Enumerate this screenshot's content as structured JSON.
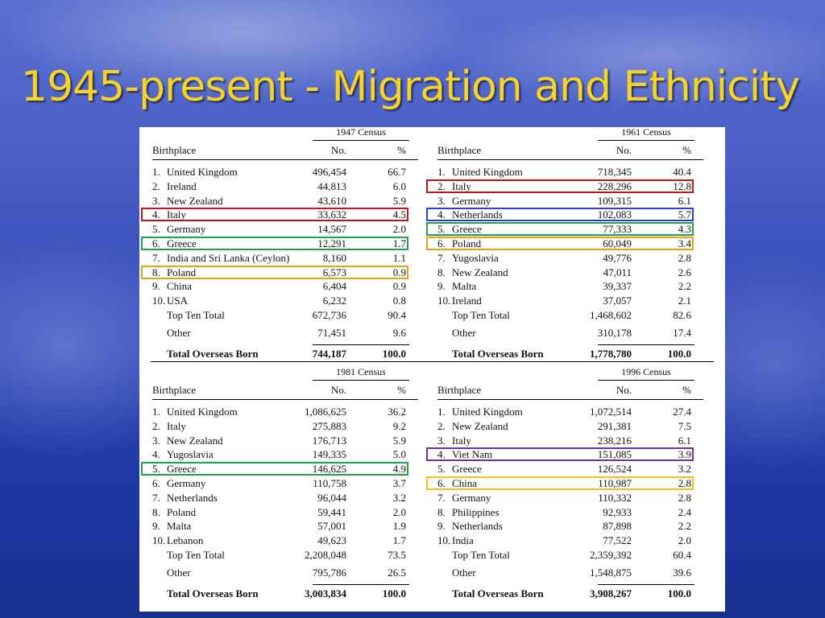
{
  "slide": {
    "title": "1945-present - Migration and Ethnicity"
  },
  "labels": {
    "birthplace": "Birthplace",
    "no": "No.",
    "pct": "%"
  },
  "tables": [
    {
      "census": "1947 Census",
      "rows": [
        {
          "idx": "1.",
          "name": "United Kingdom",
          "no": "496,454",
          "pct": "66.7"
        },
        {
          "idx": "2.",
          "name": "Ireland",
          "no": "44,813",
          "pct": "6.0"
        },
        {
          "idx": "3.",
          "name": "New Zealand",
          "no": "43,610",
          "pct": "5.9"
        },
        {
          "idx": "4.",
          "name": "Italy",
          "no": "33,632",
          "pct": "4.5"
        },
        {
          "idx": "5.",
          "name": "Germany",
          "no": "14,567",
          "pct": "2.0"
        },
        {
          "idx": "6.",
          "name": "Greece",
          "no": "12,291",
          "pct": "1.7"
        },
        {
          "idx": "7.",
          "name": "India and Sri Lanka (Ceylon)",
          "no": "8,160",
          "pct": "1.1"
        },
        {
          "idx": "8.",
          "name": "Poland",
          "no": "6,573",
          "pct": "0.9"
        },
        {
          "idx": "9.",
          "name": "China",
          "no": "6,404",
          "pct": "0.9"
        },
        {
          "idx": "10.",
          "name": "USA",
          "no": "6,232",
          "pct": "0.8"
        }
      ],
      "top_ten": {
        "name": "Top Ten Total",
        "no": "672,736",
        "pct": "90.4"
      },
      "other": {
        "name": "Other",
        "no": "71,451",
        "pct": "9.6"
      },
      "total": {
        "name": "Total Overseas Born",
        "no": "744,187",
        "pct": "100.0"
      },
      "highlights": [
        {
          "row": 4,
          "color": "#c0161b"
        },
        {
          "row": 6,
          "color": "#1fa24a"
        },
        {
          "row": 8,
          "color": "#d9a90f"
        }
      ]
    },
    {
      "census": "1961 Census",
      "rows": [
        {
          "idx": "1.",
          "name": "United Kingdom",
          "no": "718,345",
          "pct": "40.4"
        },
        {
          "idx": "2.",
          "name": "Italy",
          "no": "228,296",
          "pct": "12.8"
        },
        {
          "idx": "3.",
          "name": "Germany",
          "no": "109,315",
          "pct": "6.1"
        },
        {
          "idx": "4.",
          "name": "Netherlands",
          "no": "102,083",
          "pct": "5.7"
        },
        {
          "idx": "5.",
          "name": "Greece",
          "no": "77,333",
          "pct": "4.3"
        },
        {
          "idx": "6.",
          "name": "Poland",
          "no": "60,049",
          "pct": "3.4"
        },
        {
          "idx": "7.",
          "name": "Yugoslavia",
          "no": "49,776",
          "pct": "2.8"
        },
        {
          "idx": "8.",
          "name": "New Zealand",
          "no": "47,011",
          "pct": "2.6"
        },
        {
          "idx": "9.",
          "name": "Malta",
          "no": "39,337",
          "pct": "2.2"
        },
        {
          "idx": "10.",
          "name": "Ireland",
          "no": "37,057",
          "pct": "2.1"
        }
      ],
      "top_ten": {
        "name": "Top Ten Total",
        "no": "1,468,602",
        "pct": "82.6"
      },
      "other": {
        "name": "Other",
        "no": "310,178",
        "pct": "17.4"
      },
      "total": {
        "name": "Total Overseas Born",
        "no": "1,778,780",
        "pct": "100.0"
      },
      "highlights": [
        {
          "row": 2,
          "color": "#c0161b"
        },
        {
          "row": 4,
          "color": "#2a3fd0"
        },
        {
          "row": 5,
          "color": "#1fa24a"
        },
        {
          "row": 6,
          "color": "#d9a90f"
        }
      ]
    },
    {
      "census": "1981 Census",
      "rows": [
        {
          "idx": "1.",
          "name": "United Kingdom",
          "no": "1,086,625",
          "pct": "36.2"
        },
        {
          "idx": "2.",
          "name": "Italy",
          "no": "275,883",
          "pct": "9.2"
        },
        {
          "idx": "3.",
          "name": "New Zealand",
          "no": "176,713",
          "pct": "5.9"
        },
        {
          "idx": "4.",
          "name": "Yugoslavia",
          "no": "149,335",
          "pct": "5.0"
        },
        {
          "idx": "5.",
          "name": "Greece",
          "no": "146,625",
          "pct": "4.9"
        },
        {
          "idx": "6.",
          "name": "Germany",
          "no": "110,758",
          "pct": "3.7"
        },
        {
          "idx": "7.",
          "name": "Netherlands",
          "no": "96,044",
          "pct": "3.2"
        },
        {
          "idx": "8.",
          "name": "Poland",
          "no": "59,441",
          "pct": "2.0"
        },
        {
          "idx": "9.",
          "name": "Malta",
          "no": "57,001",
          "pct": "1.9"
        },
        {
          "idx": "10.",
          "name": "Lebanon",
          "no": "49,623",
          "pct": "1.7"
        }
      ],
      "top_ten": {
        "name": "Top Ten Total",
        "no": "2,208,048",
        "pct": "73.5"
      },
      "other": {
        "name": "Other",
        "no": "795,786",
        "pct": "26.5"
      },
      "total": {
        "name": "Total Overseas Born",
        "no": "3,003,834",
        "pct": "100.0"
      },
      "highlights": [
        {
          "row": 5,
          "color": "#1fa24a"
        }
      ]
    },
    {
      "census": "1996 Census",
      "rows": [
        {
          "idx": "1.",
          "name": "United Kingdom",
          "no": "1,072,514",
          "pct": "27.4"
        },
        {
          "idx": "2.",
          "name": "New Zealand",
          "no": "291,381",
          "pct": "7.5"
        },
        {
          "idx": "3.",
          "name": "Italy",
          "no": "238,216",
          "pct": "6.1"
        },
        {
          "idx": "4.",
          "name": "Viet Nam",
          "no": "151,085",
          "pct": "3.9"
        },
        {
          "idx": "5.",
          "name": "Greece",
          "no": "126,524",
          "pct": "3.2"
        },
        {
          "idx": "6.",
          "name": "China",
          "no": "110,987",
          "pct": "2.8"
        },
        {
          "idx": "7.",
          "name": "Germany",
          "no": "110,332",
          "pct": "2.8"
        },
        {
          "idx": "8.",
          "name": "Philippines",
          "no": "92,933",
          "pct": "2.4"
        },
        {
          "idx": "9.",
          "name": "Netherlands",
          "no": "87,898",
          "pct": "2.2"
        },
        {
          "idx": "10.",
          "name": "India",
          "no": "77,522",
          "pct": "2.0"
        }
      ],
      "top_ten": {
        "name": "Top Ten Total",
        "no": "2,359,392",
        "pct": "60.4"
      },
      "other": {
        "name": "Other",
        "no": "1,548,875",
        "pct": "39.6"
      },
      "total": {
        "name": "Total Overseas Born",
        "no": "3,908,267",
        "pct": "100.0"
      },
      "highlights": [
        {
          "row": 4,
          "color": "#6b2fa6"
        },
        {
          "row": 6,
          "color": "#f2c21a"
        }
      ]
    }
  ]
}
